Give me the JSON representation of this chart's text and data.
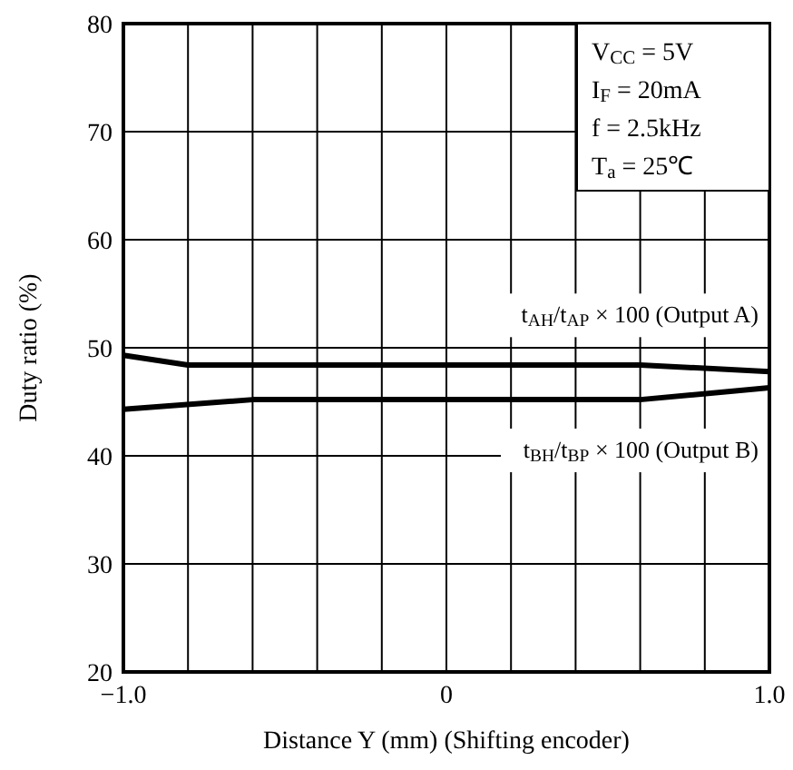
{
  "chart_data": {
    "type": "line",
    "xlabel": "Distance Y (mm) (Shifting encoder)",
    "ylabel": "Duty ratio (%)",
    "xlim": [
      -1,
      1
    ],
    "ylim": [
      20,
      80
    ],
    "xticks": [
      {
        "value": -1,
        "label": "−1.0"
      },
      {
        "value": -0.8,
        "label": null
      },
      {
        "value": -0.6,
        "label": null
      },
      {
        "value": -0.4,
        "label": null
      },
      {
        "value": -0.2,
        "label": null
      },
      0,
      {
        "value": 0.2,
        "label": null
      },
      {
        "value": 0.4,
        "label": null
      },
      {
        "value": 0.6,
        "label": null
      },
      {
        "value": 0.8,
        "label": null
      },
      {
        "value": 1,
        "label": "1.0"
      }
    ],
    "yticks": [
      20,
      30,
      40,
      50,
      60,
      70,
      80
    ],
    "grid": true,
    "legend": false,
    "marker": "none",
    "line_style": "solid",
    "series": [
      {
        "name": "t$_{AH}$/t$_{AP}$ × 100 (Output A)",
        "color": "#000000",
        "x": [
          -1,
          -0.8,
          -0.6,
          0,
          0.6,
          1
        ],
        "values": [
          49.3,
          48.4,
          48.4,
          48.4,
          48.4,
          47.8
        ]
      },
      {
        "name": "t$_{BH}$/t$_{BP}$ × 100 (Output B)",
        "color": "#000000",
        "x": [
          -1,
          -0.6,
          0,
          0.6,
          1
        ],
        "values": [
          44.3,
          45.2,
          45.2,
          45.2,
          46.3
        ]
      }
    ],
    "annotations": [
      "V$_{CC}$ = 5V",
      "I$_{F}$ = 20mA",
      "f = 2.5kHz",
      "T$_{a}$ = 25℃"
    ]
  }
}
